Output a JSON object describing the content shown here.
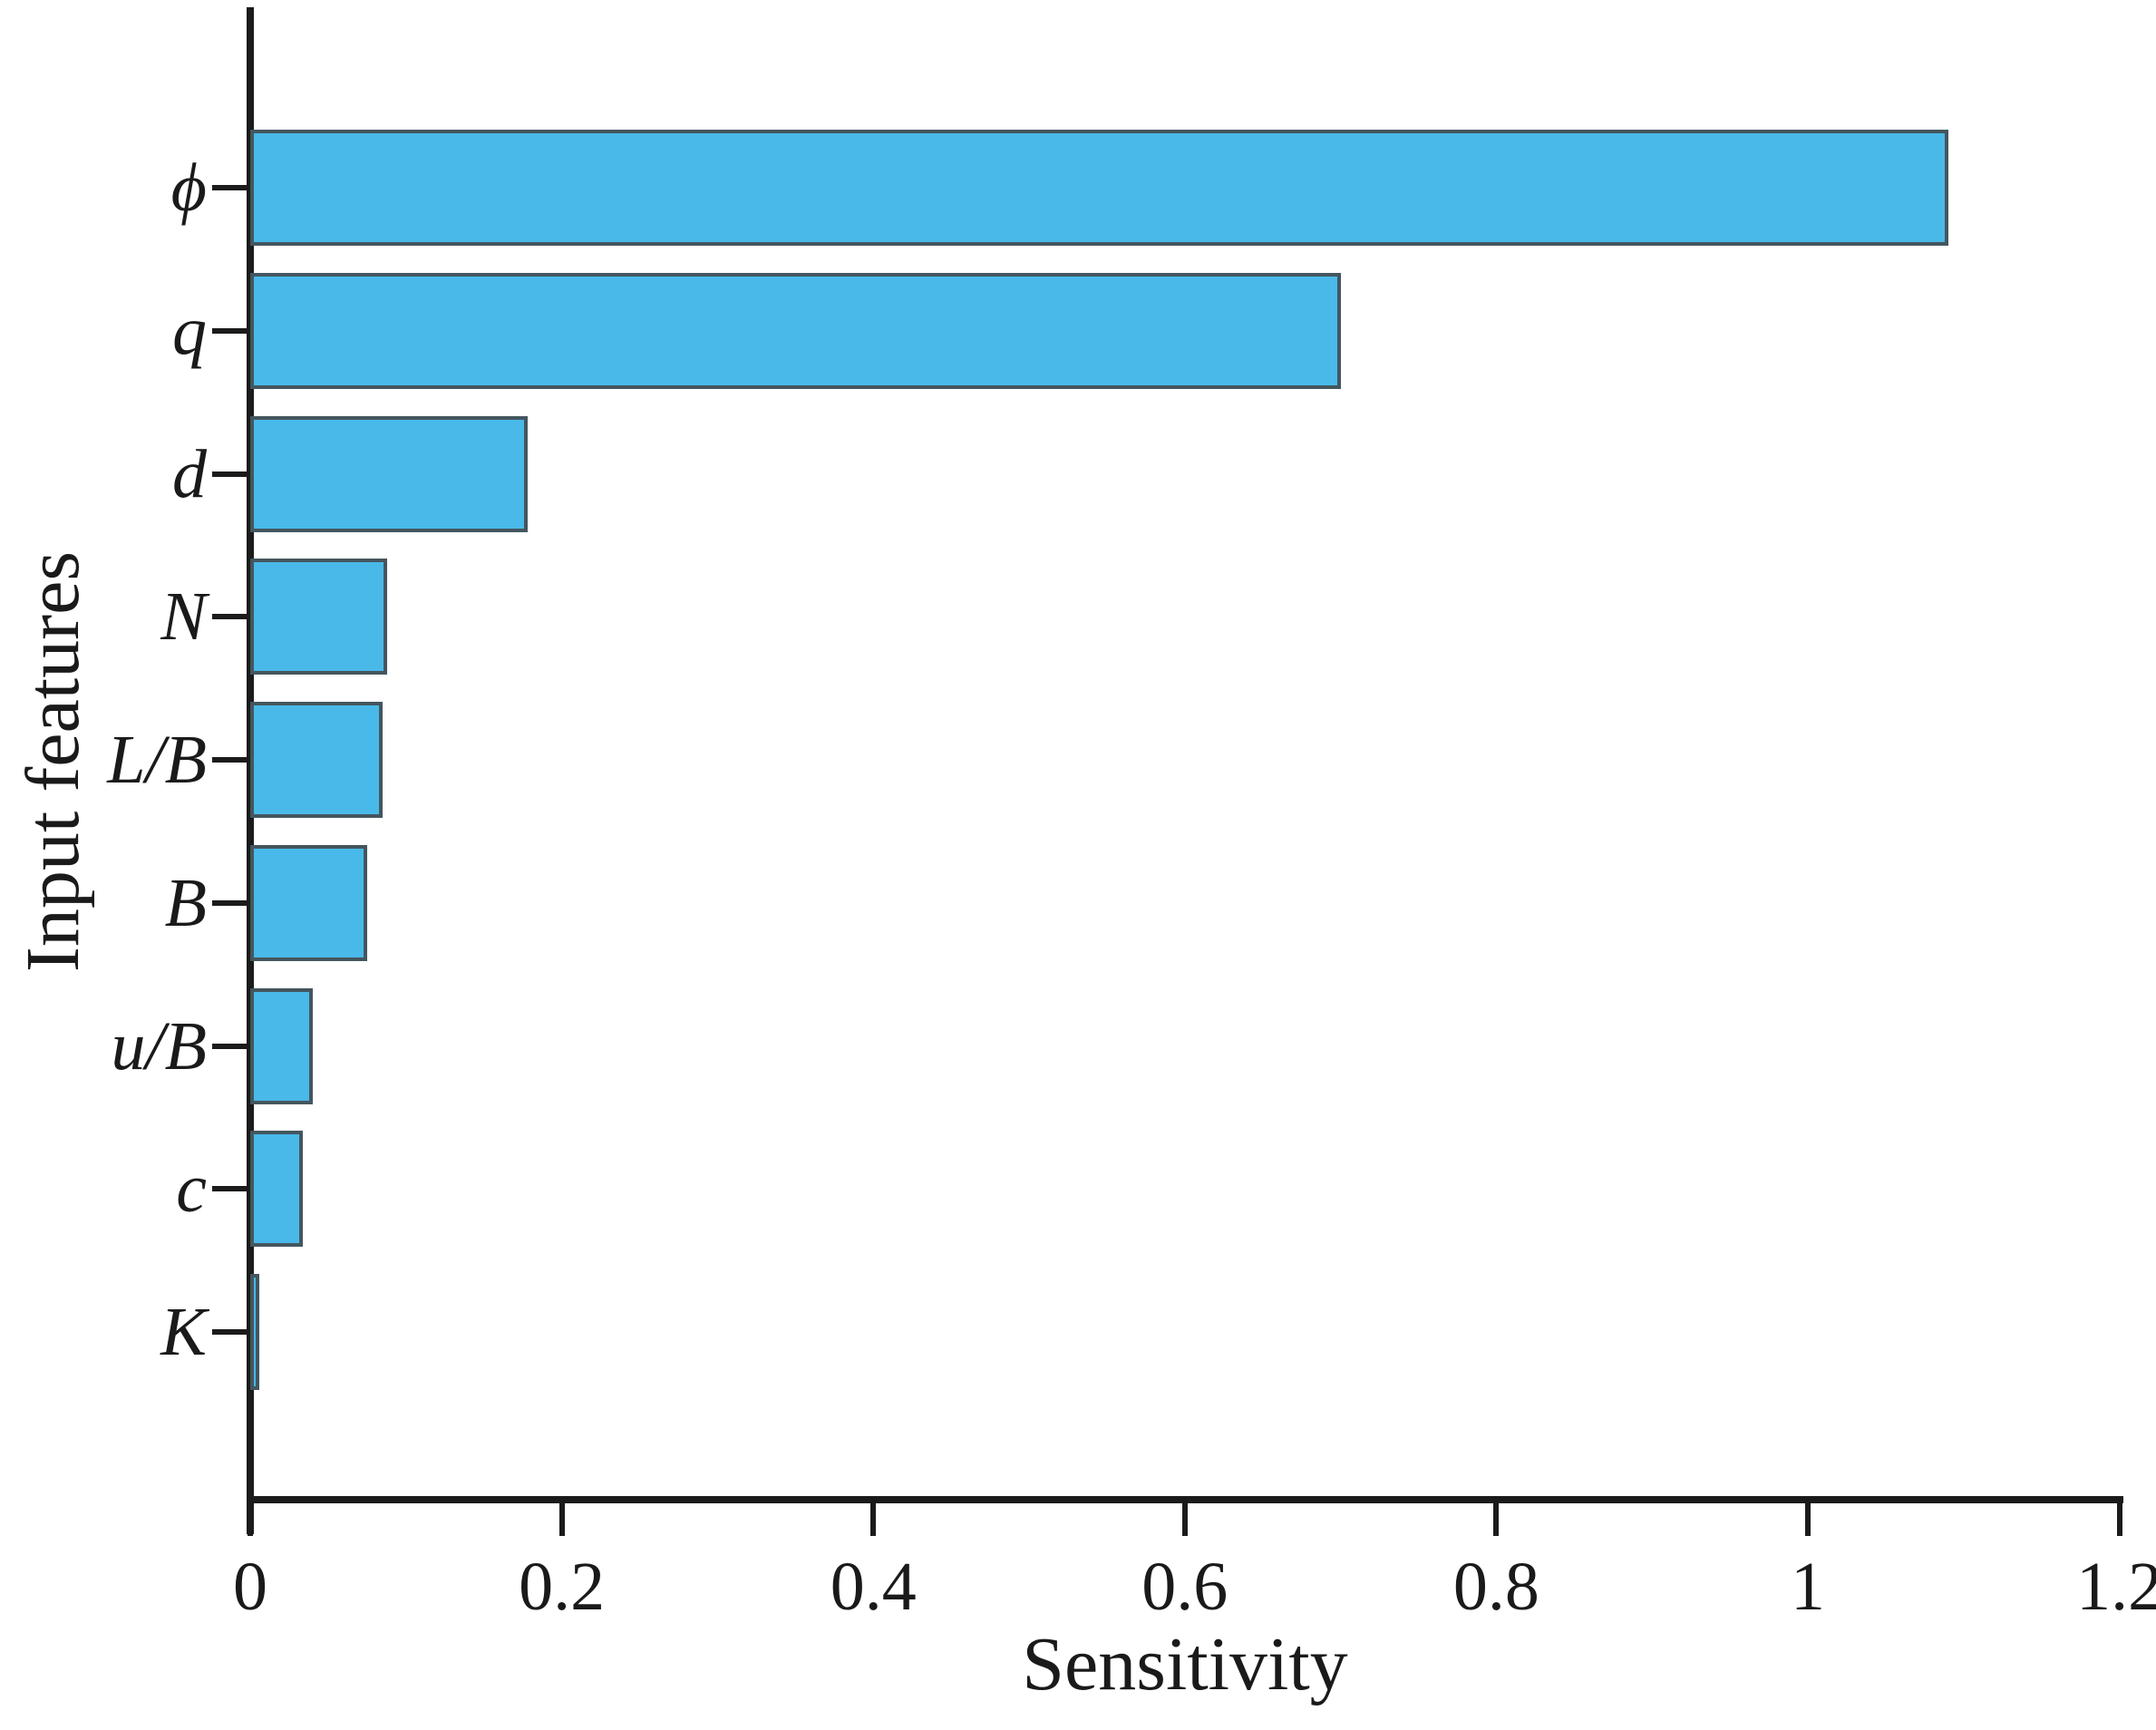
{
  "figure": {
    "background": "#ffffff"
  },
  "chart_data": {
    "type": "bar",
    "orientation": "horizontal",
    "title": "",
    "xlabel": "Sensitivity",
    "ylabel": "Input features",
    "categories": [
      "ϕ",
      "q",
      "d",
      "N",
      "L/B",
      "B",
      "u/B",
      "c",
      "K"
    ],
    "values": [
      1.09,
      0.7,
      0.178,
      0.088,
      0.085,
      0.075,
      0.04,
      0.034,
      0.006
    ],
    "xlim": [
      0,
      1.2
    ],
    "xticks": [
      0,
      0.2,
      0.4,
      0.6,
      0.8,
      1,
      1.2
    ],
    "xtick_labels": [
      "0",
      "0.2",
      "0.4",
      "0.6",
      "0.8",
      "1",
      "1.2"
    ],
    "grid": false,
    "legend": null,
    "bar_color": "#49b9e9",
    "bar_edge_color": "#44565e",
    "axis_color": "#1b1b1b",
    "text_color": "#1a1a1a"
  }
}
